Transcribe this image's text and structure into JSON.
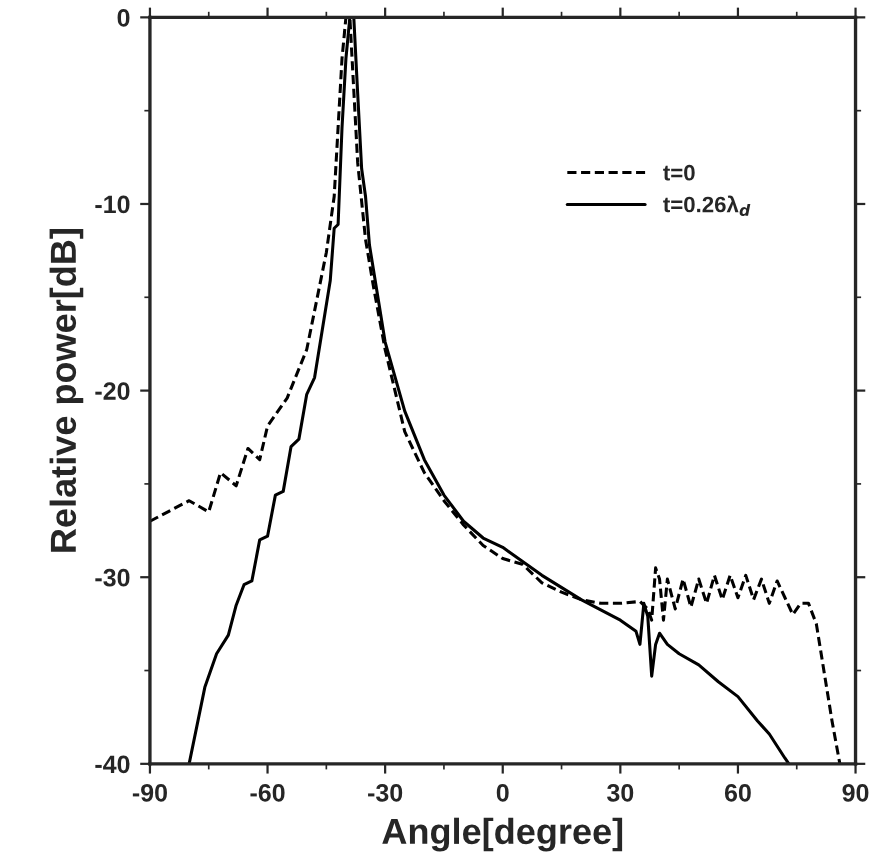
{
  "chart_data": {
    "type": "line",
    "xlabel": "Angle[degree]",
    "ylabel": "Relative power[dB]",
    "xlim": [
      -90,
      90
    ],
    "xticks": [
      -90,
      -60,
      -30,
      0,
      30,
      60,
      90
    ],
    "ylim": [
      -40,
      0
    ],
    "yticks": [
      -40,
      -30,
      -20,
      -10,
      0
    ],
    "grid": false,
    "legend": "top right",
    "series": [
      {
        "name": "t=0",
        "color": "#000000",
        "line_style": "dashed",
        "x": [
          -90,
          -80,
          -75,
          -72,
          -68,
          -65,
          -62,
          -60,
          -55,
          -50,
          -45,
          -43,
          -41,
          -40,
          -39,
          -37,
          -35,
          -33,
          -30,
          -25,
          -20,
          -15,
          -10,
          -5,
          0,
          5,
          10,
          15,
          20,
          25,
          30,
          35,
          37,
          38,
          39,
          40,
          41,
          42,
          44,
          46,
          48,
          50,
          52,
          54,
          56,
          58,
          60,
          62,
          64,
          66,
          68,
          70,
          72,
          74,
          76,
          78,
          80,
          82,
          84,
          86
        ],
        "values": [
          -27,
          -25.9,
          -26.5,
          -24.4,
          -25.1,
          -23.1,
          -23.7,
          -21.9,
          -20.4,
          -17.8,
          -12.6,
          -9.6,
          -2.2,
          0,
          0,
          -7.8,
          -11.9,
          -14.4,
          -17.8,
          -22.2,
          -24.4,
          -25.9,
          -27.2,
          -28.3,
          -29,
          -29.3,
          -30.3,
          -30.8,
          -31.2,
          -31.4,
          -31.4,
          -31.3,
          -31.7,
          -32.3,
          -29.5,
          -30.1,
          -32.3,
          -30.1,
          -31.7,
          -30.1,
          -31.6,
          -30.1,
          -31.4,
          -29.9,
          -31.2,
          -29.9,
          -31.1,
          -29.9,
          -31.2,
          -30.1,
          -31.4,
          -30.2,
          -31.1,
          -32,
          -31.4,
          -31.4,
          -32.5,
          -35.1,
          -37.7,
          -40
        ]
      },
      {
        "name": "t=0.26λ$_{d}$",
        "color": "#000000",
        "line_style": "solid",
        "x": [
          -80,
          -76,
          -73,
          -70,
          -68,
          -66,
          -64,
          -62,
          -60,
          -58,
          -56,
          -54,
          -52,
          -50,
          -48,
          -46,
          -44,
          -43,
          -42,
          -41,
          -40,
          -39,
          -38,
          -37,
          -36,
          -35,
          -34,
          -32,
          -30,
          -25,
          -20,
          -15,
          -10,
          -5,
          0,
          10,
          20,
          30,
          34,
          35,
          36,
          37,
          38,
          39,
          40,
          42,
          45,
          50,
          55,
          60,
          65,
          68,
          72,
          73
        ],
        "values": [
          -40,
          -35.9,
          -34.1,
          -33.1,
          -31.5,
          -30.4,
          -30.2,
          -28,
          -27.8,
          -25.6,
          -25.4,
          -23,
          -22.6,
          -20.2,
          -19.3,
          -16.7,
          -14.1,
          -11.3,
          -11.1,
          -5.9,
          -2.2,
          0,
          0,
          -4.1,
          -8.1,
          -9.6,
          -12.2,
          -14.8,
          -17.4,
          -21.1,
          -23.7,
          -25.6,
          -27,
          -27.9,
          -28.4,
          -29.9,
          -31.2,
          -32.3,
          -32.9,
          -33.6,
          -31.4,
          -32.1,
          -35.3,
          -33.6,
          -33,
          -33.6,
          -34.1,
          -34.7,
          -35.6,
          -36.4,
          -37.7,
          -38.4,
          -39.7,
          -40
        ]
      }
    ]
  }
}
